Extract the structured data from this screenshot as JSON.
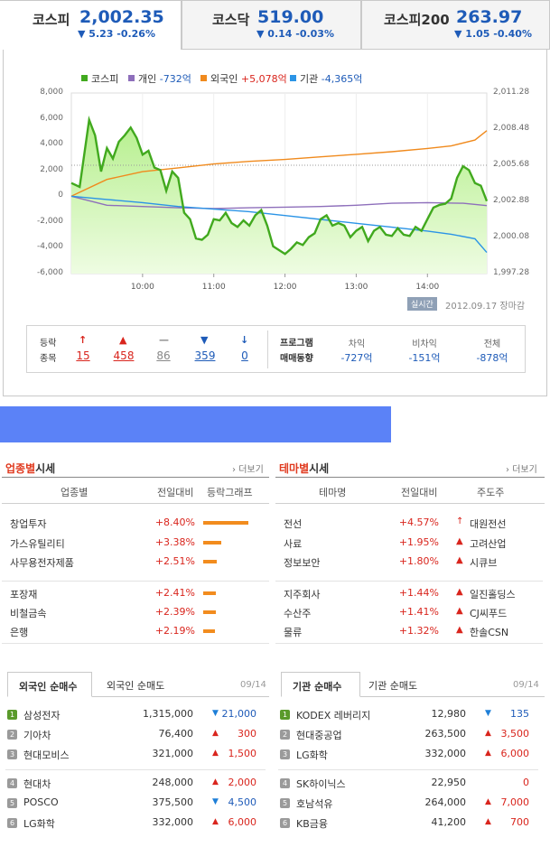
{
  "indices": [
    {
      "name": "코스피",
      "value": "2,002.35",
      "change": "▼ 5.23 -0.26%"
    },
    {
      "name": "코스닥",
      "value": "519.00",
      "change": "▼ 0.14 -0.03%"
    },
    {
      "name": "코스피200",
      "value": "263.97",
      "change": "▼ 1.05 -0.40%"
    }
  ],
  "legend": [
    {
      "label": "코스피",
      "value": "",
      "color": "#41a91e"
    },
    {
      "label": "개인",
      "value": "-732억",
      "color": "#8e6fbb"
    },
    {
      "label": "외국인",
      "value": "+5,078억",
      "color": "#f08a1d"
    },
    {
      "label": "기관",
      "value": "-4,365억",
      "color": "#2b94e6"
    }
  ],
  "chart_data": {
    "type": "line",
    "x_ticks": [
      "10:00",
      "11:00",
      "12:00",
      "13:00",
      "14:00"
    ],
    "y_left_ticks": [
      "8,000",
      "6,000",
      "4,000",
      "2,000",
      "0",
      "-2,000",
      "-4,000",
      "-6,000"
    ],
    "y_right_ticks": [
      "2,011.28",
      "2,008.48",
      "2,005.68",
      "2,002.88",
      "2,000.08",
      "1,997.28"
    ],
    "ylim_left": [
      -6000,
      8000
    ],
    "ylim_right": [
      1997.28,
      2011.28
    ],
    "reference_line": 2005.68,
    "series": [
      {
        "name": "코스피",
        "axis": "right",
        "x": [
          "09:00",
          "09:07",
          "09:15",
          "09:20",
          "09:25",
          "09:30",
          "09:35",
          "09:40",
          "09:45",
          "09:50",
          "09:55",
          "10:00",
          "10:05",
          "10:10",
          "10:15",
          "10:20",
          "10:25",
          "10:30",
          "10:35",
          "10:40",
          "10:45",
          "10:50",
          "10:55",
          "11:00",
          "11:05",
          "11:10",
          "11:15",
          "11:20",
          "11:25",
          "11:30",
          "11:35",
          "11:40",
          "11:45",
          "11:50",
          "11:55",
          "12:00",
          "12:05",
          "12:10",
          "12:15",
          "12:20",
          "12:25",
          "12:30",
          "12:35",
          "12:40",
          "12:45",
          "12:50",
          "12:55",
          "13:00",
          "13:05",
          "13:10",
          "13:15",
          "13:20",
          "13:25",
          "13:30",
          "13:35",
          "13:40",
          "13:45",
          "13:50",
          "13:55",
          "14:00",
          "14:05",
          "14:10",
          "14:15",
          "14:20",
          "14:25",
          "14:30",
          "14:35",
          "14:40",
          "14:45",
          "14:50"
        ],
        "values": [
          2004.3,
          2004.0,
          2009.2,
          2008.0,
          2005.2,
          2007.0,
          2006.2,
          2007.5,
          2008.0,
          2008.6,
          2007.8,
          2006.5,
          2006.8,
          2005.5,
          2005.3,
          2003.7,
          2005.2,
          2004.7,
          2002.0,
          2001.5,
          2000.0,
          1999.9,
          2000.3,
          2001.5,
          2001.4,
          2002.0,
          2001.2,
          2000.9,
          2001.4,
          2001.0,
          2001.8,
          2002.2,
          2001.0,
          1999.4,
          1999.1,
          1998.8,
          1999.2,
          1999.7,
          1999.5,
          2000.1,
          2000.4,
          2001.5,
          2001.8,
          2001.0,
          2001.2,
          2001.0,
          2000.1,
          2000.6,
          2000.9,
          1999.8,
          2000.6,
          2000.9,
          2000.3,
          2000.2,
          2000.8,
          2000.3,
          2000.2,
          2000.9,
          2000.6,
          2001.5,
          2002.4,
          2002.6,
          2002.7,
          2003.1,
          2004.7,
          2005.6,
          2005.3,
          2004.3,
          2004.1,
          2002.9
        ]
      },
      {
        "name": "개인",
        "axis": "left",
        "x": [
          "09:00",
          "09:30",
          "10:00",
          "10:30",
          "11:00",
          "11:30",
          "12:00",
          "12:30",
          "13:00",
          "13:30",
          "14:00",
          "14:30",
          "14:50"
        ],
        "values": [
          0,
          -700,
          -800,
          -900,
          -950,
          -900,
          -850,
          -800,
          -700,
          -550,
          -500,
          -550,
          -732
        ]
      },
      {
        "name": "외국인",
        "axis": "left",
        "x": [
          "09:00",
          "09:30",
          "10:00",
          "10:30",
          "11:00",
          "11:30",
          "12:00",
          "12:30",
          "13:00",
          "13:30",
          "14:00",
          "14:20",
          "14:40",
          "14:50"
        ],
        "values": [
          0,
          1300,
          1900,
          2200,
          2500,
          2700,
          2850,
          3050,
          3250,
          3450,
          3700,
          3900,
          4350,
          5078
        ]
      },
      {
        "name": "기관",
        "axis": "left",
        "x": [
          "09:00",
          "09:30",
          "10:00",
          "10:30",
          "11:00",
          "11:30",
          "12:00",
          "12:30",
          "13:00",
          "13:30",
          "14:00",
          "14:20",
          "14:40",
          "14:50"
        ],
        "values": [
          0,
          -250,
          -500,
          -800,
          -1000,
          -1200,
          -1500,
          -1800,
          -2100,
          -2400,
          -2700,
          -2950,
          -3300,
          -4365
        ]
      }
    ]
  },
  "timestamp": {
    "badge": "실시간",
    "text": "2012.09.17 장마감"
  },
  "stats": {
    "labels": [
      "등락",
      "종목"
    ],
    "counts": [
      {
        "icon": "↑",
        "value": "15",
        "color": "#d9251d"
      },
      {
        "icon": "▲",
        "value": "458",
        "color": "#d9251d"
      },
      {
        "icon": "—",
        "value": "86",
        "color": "#888888"
      },
      {
        "icon": "▼",
        "value": "359",
        "color": "#1e5bb8"
      },
      {
        "icon": "↓",
        "value": "0",
        "color": "#1e5bb8"
      }
    ],
    "program_labels": [
      "프로그램",
      "매매동향"
    ],
    "program": [
      {
        "label": "차익",
        "value": "-727억"
      },
      {
        "label": "비차익",
        "value": "-151억"
      },
      {
        "label": "전체",
        "value": "-878억"
      }
    ]
  },
  "industry": {
    "title_hl": "업종별",
    "title_rest": "시세",
    "more": "더보기",
    "headers": [
      "업종별",
      "전일대비",
      "등락그래프"
    ],
    "rows": [
      {
        "name": "창업투자",
        "change": "+8.40%",
        "bar": 0.84
      },
      {
        "name": "가스유틸리티",
        "change": "+3.38%",
        "bar": 0.34
      },
      {
        "name": "사무용전자제품",
        "change": "+2.51%",
        "bar": 0.25
      },
      {
        "name": "포장재",
        "change": "+2.41%",
        "bar": 0.24
      },
      {
        "name": "비철금속",
        "change": "+2.39%",
        "bar": 0.24
      },
      {
        "name": "은행",
        "change": "+2.19%",
        "bar": 0.22
      }
    ]
  },
  "theme": {
    "title_hl": "테마별",
    "title_rest": "시세",
    "more": "더보기",
    "headers": [
      "테마명",
      "전일대비",
      "주도주"
    ],
    "rows": [
      {
        "name": "전선",
        "change": "+4.57%",
        "icon": "↑",
        "leader": "대원전선"
      },
      {
        "name": "사료",
        "change": "+1.95%",
        "icon": "▲",
        "leader": "고려산업"
      },
      {
        "name": "정보보안",
        "change": "+1.80%",
        "icon": "▲",
        "leader": "시큐브"
      },
      {
        "name": "지주회사",
        "change": "+1.44%",
        "icon": "▲",
        "leader": "일진홀딩스"
      },
      {
        "name": "수산주",
        "change": "+1.41%",
        "icon": "▲",
        "leader": "CJ씨푸드"
      },
      {
        "name": "물류",
        "change": "+1.32%",
        "icon": "▲",
        "leader": "한솔CSN"
      }
    ]
  },
  "foreign": {
    "tabs": [
      "외국인 순매수",
      "외국인 순매도"
    ],
    "date": "09/14",
    "rows": [
      {
        "rank": "1",
        "name": "삼성전자",
        "price": "1,315,000",
        "dir": "▼",
        "change": "21,000"
      },
      {
        "rank": "2",
        "name": "기아차",
        "price": "76,400",
        "dir": "▲",
        "change": "300"
      },
      {
        "rank": "3",
        "name": "현대모비스",
        "price": "321,000",
        "dir": "▲",
        "change": "1,500"
      },
      {
        "rank": "4",
        "name": "현대차",
        "price": "248,000",
        "dir": "▲",
        "change": "2,000"
      },
      {
        "rank": "5",
        "name": "POSCO",
        "price": "375,500",
        "dir": "▼",
        "change": "4,500"
      },
      {
        "rank": "6",
        "name": "LG화학",
        "price": "332,000",
        "dir": "▲",
        "change": "6,000"
      }
    ]
  },
  "institution": {
    "tabs": [
      "기관 순매수",
      "기관 순매도"
    ],
    "date": "09/14",
    "rows": [
      {
        "rank": "1",
        "name": "KODEX 레버리지",
        "price": "12,980",
        "dir": "▼",
        "change": "135"
      },
      {
        "rank": "2",
        "name": "현대중공업",
        "price": "263,500",
        "dir": "▲",
        "change": "3,500"
      },
      {
        "rank": "3",
        "name": "LG화학",
        "price": "332,000",
        "dir": "▲",
        "change": "6,000"
      },
      {
        "rank": "4",
        "name": "SK하이닉스",
        "price": "22,950",
        "dir": "",
        "change": "0"
      },
      {
        "rank": "5",
        "name": "호남석유",
        "price": "264,000",
        "dir": "▲",
        "change": "7,000"
      },
      {
        "rank": "6",
        "name": "KB금융",
        "price": "41,200",
        "dir": "▲",
        "change": "700"
      }
    ]
  }
}
